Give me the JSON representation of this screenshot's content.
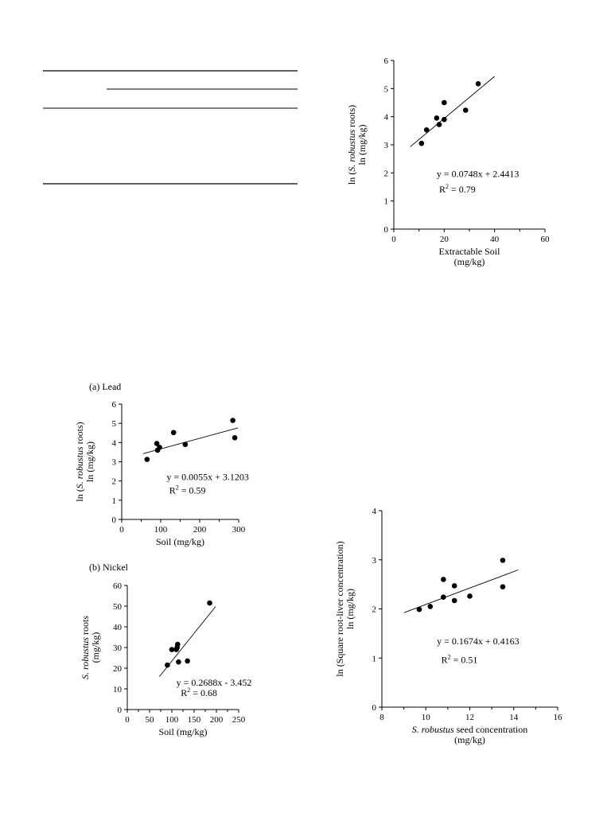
{
  "table": {
    "rules": 4
  },
  "chart_data": [
    {
      "id": "chart1",
      "type": "scatter",
      "panel_label": "",
      "xlabel_lines": [
        "Extractable Soil",
        "(mg/kg)"
      ],
      "ylabel_lines": [
        {
          "parts": [
            {
              "t": "ln ("
            },
            {
              "t": "S. robustus",
              "i": true
            },
            {
              "t": " roots)"
            }
          ]
        },
        {
          "parts": [
            {
              "t": "ln (mg/kg)"
            }
          ]
        }
      ],
      "xlim": [
        0,
        60
      ],
      "ylim": [
        0,
        6
      ],
      "xticks": [
        0,
        20,
        40,
        60
      ],
      "yticks": [
        0,
        1,
        2,
        3,
        4,
        5,
        6
      ],
      "xticks_tick": [
        10,
        30,
        50
      ],
      "points": [
        [
          11,
          3.05
        ],
        [
          13,
          3.53
        ],
        [
          17,
          3.95
        ],
        [
          18,
          3.72
        ],
        [
          20,
          4.5
        ],
        [
          20,
          3.9
        ],
        [
          28.5,
          4.23
        ],
        [
          33.5,
          5.17
        ]
      ],
      "trendline": {
        "x": [
          6.5,
          40
        ],
        "slope": 0.0748,
        "intercept": 2.4413
      },
      "equation": "y = 0.0748x + 2.4413",
      "r2_prefix": "R",
      "r2_sup": "2",
      "r2_value": " = 0.79",
      "eq_pos": [
        17,
        1.85
      ],
      "r2_pos": [
        18,
        1.3
      ]
    },
    {
      "id": "chart2",
      "type": "scatter",
      "panel_label": "(a) Lead",
      "xlabel_lines": [
        "Soil (mg/kg)"
      ],
      "ylabel_lines": [
        {
          "parts": [
            {
              "t": "ln ("
            },
            {
              "t": "S. robustus",
              "i": true
            },
            {
              "t": " roots)"
            }
          ]
        },
        {
          "parts": [
            {
              "t": "ln (mg/kg)"
            }
          ]
        }
      ],
      "xlim": [
        0,
        300
      ],
      "ylim": [
        0,
        6
      ],
      "xticks": [
        0,
        100,
        200,
        300
      ],
      "yticks": [
        0,
        1,
        2,
        3,
        4,
        5,
        6
      ],
      "xticks_tick": [
        50,
        150,
        250
      ],
      "points": [
        [
          65,
          3.12
        ],
        [
          90,
          3.95
        ],
        [
          92,
          3.6
        ],
        [
          97,
          3.75
        ],
        [
          133,
          4.52
        ],
        [
          163,
          3.9
        ],
        [
          285,
          5.15
        ],
        [
          290,
          4.25
        ]
      ],
      "trendline": {
        "x": [
          55,
          298
        ],
        "slope": 0.0055,
        "intercept": 3.1203
      },
      "equation": "y = 0.0055x + 3.1203",
      "r2_prefix": "R",
      "r2_sup": "2",
      "r2_value": " = 0.59",
      "eq_pos": [
        115,
        2.05
      ],
      "r2_pos": [
        122,
        1.35
      ]
    },
    {
      "id": "chart3",
      "type": "scatter",
      "panel_label": "(b) Nickel",
      "xlabel_lines": [
        "Soil (mg/kg)"
      ],
      "ylabel_lines": [
        {
          "parts": [
            {
              "t": "S. robustus",
              "i": true
            },
            {
              "t": " roots"
            }
          ]
        },
        {
          "parts": [
            {
              "t": "(mg/kg)"
            }
          ]
        }
      ],
      "xlim": [
        0,
        250
      ],
      "ylim": [
        0,
        60
      ],
      "xticks": [
        0,
        50,
        100,
        150,
        200,
        250
      ],
      "yticks": [
        0,
        10,
        20,
        30,
        40,
        50,
        60
      ],
      "xticks_tick": [
        25,
        75,
        125,
        175,
        225
      ],
      "points": [
        [
          90,
          21.5
        ],
        [
          100,
          29
        ],
        [
          110,
          29
        ],
        [
          112,
          30
        ],
        [
          113,
          31.5
        ],
        [
          115,
          23
        ],
        [
          135,
          23.5
        ],
        [
          185,
          51.5
        ]
      ],
      "trendline": {
        "x": [
          72,
          198
        ],
        "slope": 0.2688,
        "intercept": -3.452
      },
      "equation": "y = 0.2688x - 3.452",
      "r2_prefix": "R",
      "r2_sup": "2",
      "r2_value": " = 0.68",
      "eq_pos": [
        110,
        11.5
      ],
      "r2_pos": [
        120,
        6.5
      ]
    },
    {
      "id": "chart4",
      "type": "scatter",
      "panel_label": "",
      "xlabel_lines": [
        {
          "parts": [
            {
              "t": "S. robustus",
              "i": true
            },
            {
              "t": " seed concentration"
            }
          ]
        },
        {
          "parts": [
            {
              "t": "(mg/kg)"
            }
          ]
        }
      ],
      "ylabel_lines": [
        {
          "parts": [
            {
              "t": "ln (Square root-liver concentration)"
            }
          ]
        },
        {
          "parts": [
            {
              "t": "ln (mg/kg)"
            }
          ]
        }
      ],
      "xlim": [
        8,
        16
      ],
      "ylim": [
        0,
        4
      ],
      "xticks": [
        8,
        10,
        12,
        14,
        16
      ],
      "yticks": [
        0,
        1,
        2,
        3,
        4
      ],
      "xticks_tick": [
        9,
        11,
        13,
        15
      ],
      "points": [
        [
          9.7,
          1.99
        ],
        [
          10.2,
          2.05
        ],
        [
          10.8,
          2.6
        ],
        [
          10.8,
          2.24
        ],
        [
          11.3,
          2.47
        ],
        [
          11.3,
          2.17
        ],
        [
          12,
          2.26
        ],
        [
          13.5,
          2.99
        ],
        [
          13.5,
          2.45
        ]
      ],
      "trendline": {
        "x": [
          9,
          14.2
        ],
        "slope": 0.1674,
        "intercept": 0.4163
      },
      "equation": "y = 0.1674x + 0.4163",
      "r2_prefix": "R",
      "r2_sup": "2",
      "r2_value": " = 0.51",
      "eq_pos": [
        10.5,
        1.28
      ],
      "r2_pos": [
        10.7,
        0.9
      ]
    }
  ]
}
